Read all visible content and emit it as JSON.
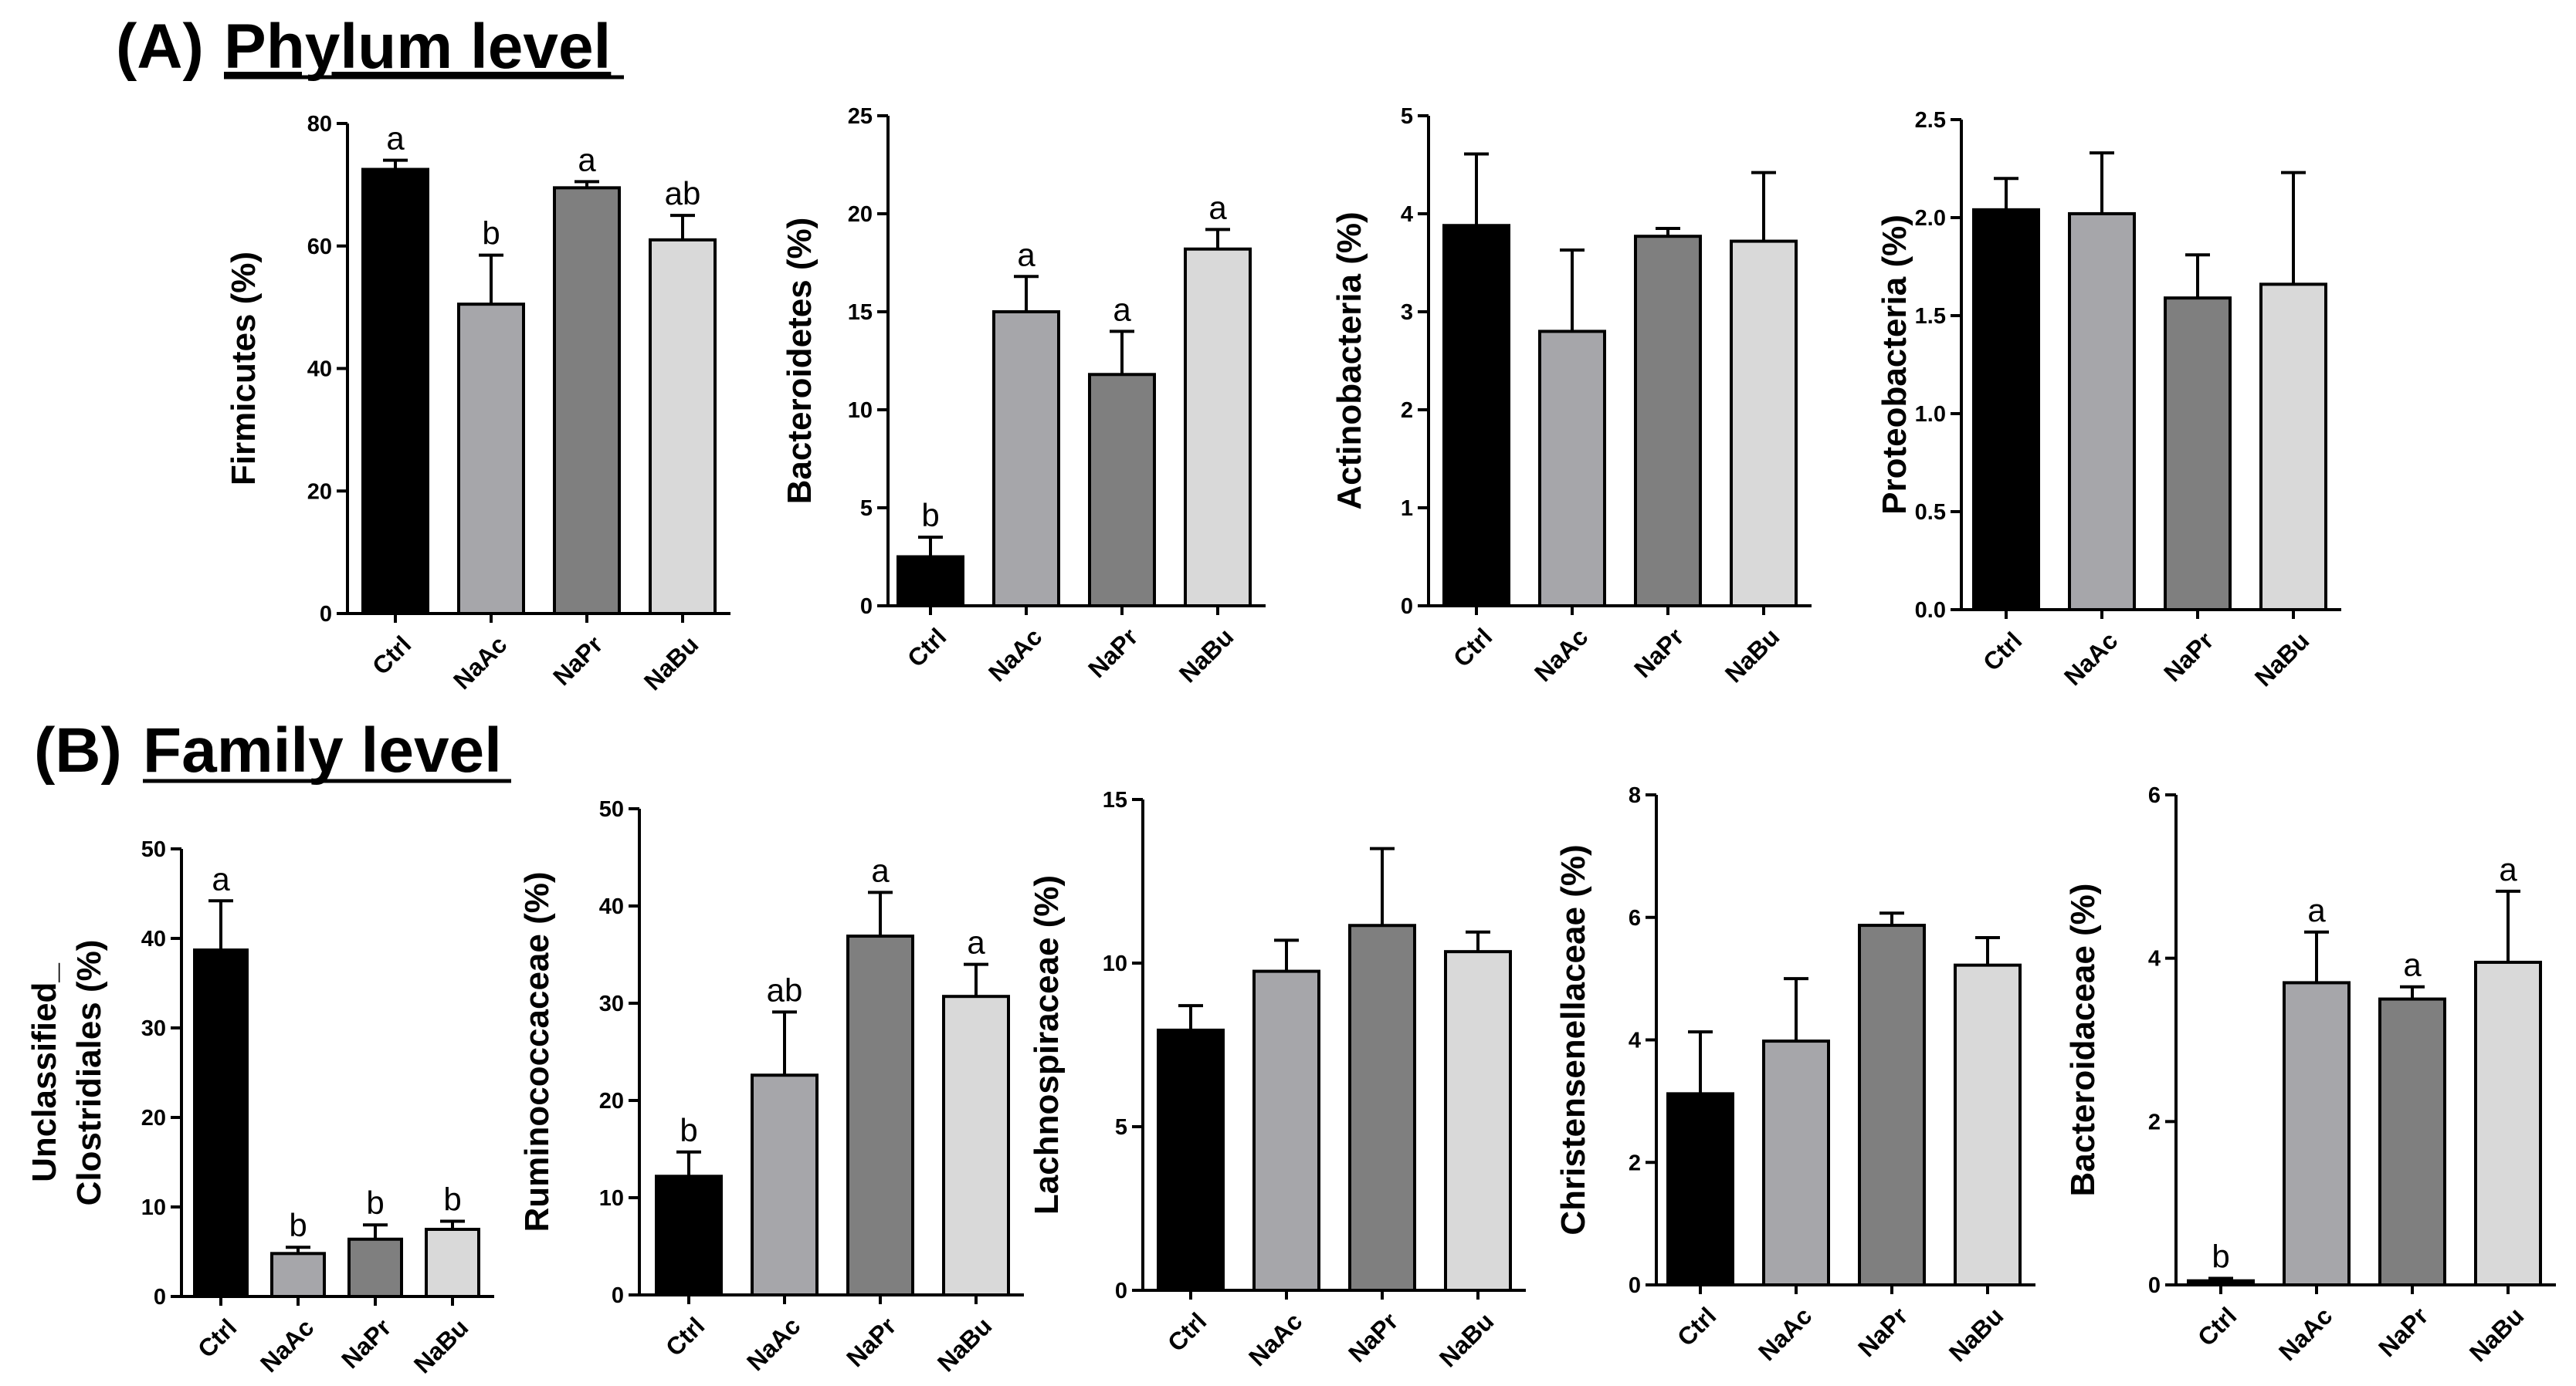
{
  "sections": {
    "a": {
      "label": "(A)",
      "title": "Phylum level"
    },
    "b": {
      "label": "(B)",
      "title": "Family level"
    }
  },
  "colors": {
    "Ctrl": "#000000",
    "NaAc": "#a6a6aa",
    "NaPr": "#7f7f7f",
    "NaBu": "#d9d9d9"
  },
  "chart_data": [
    {
      "id": "firmicutes",
      "type": "bar",
      "section": "a",
      "categories": [
        "Ctrl",
        "NaAc",
        "NaPr",
        "NaBu"
      ],
      "values": [
        72.5,
        50.5,
        69.5,
        61
      ],
      "errors": [
        1.5,
        8,
        1,
        4
      ],
      "significance": [
        "a",
        "b",
        "a",
        "ab"
      ],
      "ylabel": [
        "Firmicutes (%)"
      ],
      "ylim": [
        0,
        80
      ],
      "yticks": [
        0,
        20,
        40,
        60,
        80
      ],
      "ytick_labels": [
        "0",
        "20",
        "40",
        "60",
        "80"
      ]
    },
    {
      "id": "bacteroidetes",
      "type": "bar",
      "section": "a",
      "categories": [
        "Ctrl",
        "NaAc",
        "NaPr",
        "NaBu"
      ],
      "values": [
        2.5,
        15,
        11.8,
        18.2
      ],
      "errors": [
        1,
        1.8,
        2.2,
        1
      ],
      "significance": [
        "b",
        "a",
        "a",
        "a"
      ],
      "ylabel": [
        "Bacteroidetes (%)"
      ],
      "ylim": [
        0,
        25
      ],
      "yticks": [
        0,
        5,
        10,
        15,
        20,
        25
      ],
      "ytick_labels": [
        "0",
        "5",
        "10",
        "15",
        "20",
        "25"
      ]
    },
    {
      "id": "actinobacteria",
      "type": "bar",
      "section": "a",
      "categories": [
        "Ctrl",
        "NaAc",
        "NaPr",
        "NaBu"
      ],
      "values": [
        3.88,
        2.8,
        3.77,
        3.72
      ],
      "errors": [
        0.73,
        0.83,
        0.08,
        0.7
      ],
      "significance": [
        "",
        "",
        "",
        ""
      ],
      "ylabel": [
        "Actinobacteria (%)"
      ],
      "ylim": [
        0,
        5
      ],
      "yticks": [
        0,
        1,
        2,
        3,
        4,
        5
      ],
      "ytick_labels": [
        "0",
        "1",
        "2",
        "3",
        "4",
        "5"
      ]
    },
    {
      "id": "proteobacteria",
      "type": "bar",
      "section": "a",
      "categories": [
        "Ctrl",
        "NaAc",
        "NaPr",
        "NaBu"
      ],
      "values": [
        2.04,
        2.02,
        1.59,
        1.66
      ],
      "errors": [
        0.16,
        0.31,
        0.22,
        0.57
      ],
      "significance": [
        "",
        "",
        "",
        ""
      ],
      "ylabel": [
        "Proteobacteria (%)"
      ],
      "ylim": [
        0,
        2.5
      ],
      "yticks": [
        0,
        0.5,
        1,
        1.5,
        2,
        2.5
      ],
      "ytick_labels": [
        "0.0",
        "0.5",
        "1.0",
        "1.5",
        "2.0",
        "2.5"
      ]
    },
    {
      "id": "unclassified-clostridiales",
      "type": "bar",
      "section": "b",
      "categories": [
        "Ctrl",
        "NaAc",
        "NaPr",
        "NaBu"
      ],
      "values": [
        38.7,
        4.8,
        6.4,
        7.5
      ],
      "errors": [
        5.5,
        0.7,
        1.6,
        0.9
      ],
      "significance": [
        "a",
        "b",
        "b",
        "b"
      ],
      "ylabel": [
        "Unclassified_",
        "Clostridiales (%)"
      ],
      "ylim": [
        0,
        50
      ],
      "yticks": [
        0,
        10,
        20,
        30,
        40,
        50
      ],
      "ytick_labels": [
        "0",
        "10",
        "20",
        "30",
        "40",
        "50"
      ]
    },
    {
      "id": "ruminococcaceae",
      "type": "bar",
      "section": "b",
      "categories": [
        "Ctrl",
        "NaAc",
        "NaPr",
        "NaBu"
      ],
      "values": [
        12.2,
        22.6,
        36.9,
        30.7
      ],
      "errors": [
        2.5,
        6.5,
        4.5,
        3.3
      ],
      "significance": [
        "b",
        "ab",
        "a",
        "a"
      ],
      "ylabel": [
        "Ruminococcaceae (%)"
      ],
      "ylim": [
        0,
        50
      ],
      "yticks": [
        0,
        10,
        20,
        30,
        40,
        50
      ],
      "ytick_labels": [
        "0",
        "10",
        "20",
        "30",
        "40",
        "50"
      ]
    },
    {
      "id": "lachnospiraceae",
      "type": "bar",
      "section": "b",
      "categories": [
        "Ctrl",
        "NaAc",
        "NaPr",
        "NaBu"
      ],
      "values": [
        7.95,
        9.75,
        11.15,
        10.35
      ],
      "errors": [
        0.75,
        0.95,
        2.35,
        0.6
      ],
      "significance": [
        "",
        "",
        "",
        ""
      ],
      "ylabel": [
        "Lachnospiraceae (%)"
      ],
      "ylim": [
        0,
        15
      ],
      "yticks": [
        0,
        5,
        10,
        15
      ],
      "ytick_labels": [
        "0",
        "5",
        "10",
        "15"
      ]
    },
    {
      "id": "christensenellaceae",
      "type": "bar",
      "section": "b",
      "categories": [
        "Ctrl",
        "NaAc",
        "NaPr",
        "NaBu"
      ],
      "values": [
        3.12,
        3.98,
        5.87,
        5.22
      ],
      "errors": [
        1.01,
        1.02,
        0.2,
        0.45
      ],
      "significance": [
        "",
        "",
        "",
        ""
      ],
      "ylabel": [
        "Christensenellaceae (%)"
      ],
      "ylim": [
        0,
        8
      ],
      "yticks": [
        0,
        2,
        4,
        6,
        8
      ],
      "ytick_labels": [
        "0",
        "2",
        "4",
        "6",
        "8"
      ]
    },
    {
      "id": "bacteroidaceae",
      "type": "bar",
      "section": "b",
      "categories": [
        "Ctrl",
        "NaAc",
        "NaPr",
        "NaBu"
      ],
      "values": [
        0.05,
        3.7,
        3.5,
        3.95
      ],
      "errors": [
        0.03,
        0.62,
        0.15,
        0.87
      ],
      "significance": [
        "b",
        "a",
        "a",
        "a"
      ],
      "ylabel": [
        "Bacteroidaceae (%)"
      ],
      "ylim": [
        0,
        6
      ],
      "yticks": [
        0,
        2,
        4,
        6
      ],
      "ytick_labels": [
        "0",
        "2",
        "4",
        "6"
      ]
    }
  ]
}
